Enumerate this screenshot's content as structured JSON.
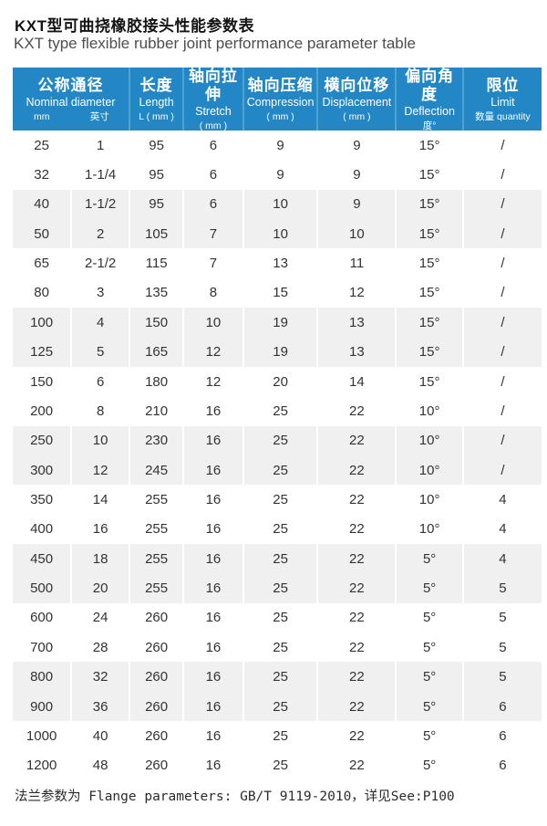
{
  "page": {
    "title_cn": "KXT型可曲挠橡胶接头性能参数表",
    "title_en": "KXT type flexible rubber joint performance parameter table",
    "footnote": "法兰参数为 Flange parameters: GB/T 9119-2010，详见See:P100"
  },
  "colors": {
    "header_bg": "#2287c4",
    "header_divider": "#4fa3cf",
    "row_stripe": "#f0f0f0",
    "body_text": "#333333",
    "header_text": "#ffffff"
  },
  "table": {
    "header": [
      {
        "cn": "公称通径",
        "en": "Nominal diameter",
        "sub": [
          "mm",
          "英寸"
        ]
      },
      {
        "cn": "长度",
        "en": "Length",
        "sub": "L ( mm )"
      },
      {
        "cn": "轴向拉伸",
        "en": "Stretch",
        "sub": "( mm )"
      },
      {
        "cn": "轴向压缩",
        "en": "Compression",
        "sub": "( mm )"
      },
      {
        "cn": "横向位移",
        "en": "Displacement",
        "sub": "( mm )"
      },
      {
        "cn": "偏向角度",
        "en": "Deflection",
        "sub": "度°"
      },
      {
        "cn": "限位",
        "en": "Limit",
        "sub": "数量 quantity"
      }
    ],
    "rows": [
      [
        "25",
        "1",
        "95",
        "6",
        "9",
        "9",
        "15°",
        "/"
      ],
      [
        "32",
        "1-1/4",
        "95",
        "6",
        "9",
        "9",
        "15°",
        "/"
      ],
      [
        "40",
        "1-1/2",
        "95",
        "6",
        "10",
        "9",
        "15°",
        "/"
      ],
      [
        "50",
        "2",
        "105",
        "7",
        "10",
        "10",
        "15°",
        "/"
      ],
      [
        "65",
        "2-1/2",
        "115",
        "7",
        "13",
        "11",
        "15°",
        "/"
      ],
      [
        "80",
        "3",
        "135",
        "8",
        "15",
        "12",
        "15°",
        "/"
      ],
      [
        "100",
        "4",
        "150",
        "10",
        "19",
        "13",
        "15°",
        "/"
      ],
      [
        "125",
        "5",
        "165",
        "12",
        "19",
        "13",
        "15°",
        "/"
      ],
      [
        "150",
        "6",
        "180",
        "12",
        "20",
        "14",
        "15°",
        "/"
      ],
      [
        "200",
        "8",
        "210",
        "16",
        "25",
        "22",
        "10°",
        "/"
      ],
      [
        "250",
        "10",
        "230",
        "16",
        "25",
        "22",
        "10°",
        "/"
      ],
      [
        "300",
        "12",
        "245",
        "16",
        "25",
        "22",
        "10°",
        "/"
      ],
      [
        "350",
        "14",
        "255",
        "16",
        "25",
        "22",
        "10°",
        "4"
      ],
      [
        "400",
        "16",
        "255",
        "16",
        "25",
        "22",
        "10°",
        "4"
      ],
      [
        "450",
        "18",
        "255",
        "16",
        "25",
        "22",
        "5°",
        "4"
      ],
      [
        "500",
        "20",
        "255",
        "16",
        "25",
        "22",
        "5°",
        "5"
      ],
      [
        "600",
        "24",
        "260",
        "16",
        "25",
        "22",
        "5°",
        "5"
      ],
      [
        "700",
        "28",
        "260",
        "16",
        "25",
        "22",
        "5°",
        "5"
      ],
      [
        "800",
        "32",
        "260",
        "16",
        "25",
        "22",
        "5°",
        "5"
      ],
      [
        "900",
        "36",
        "260",
        "16",
        "25",
        "22",
        "5°",
        "6"
      ],
      [
        "1000",
        "40",
        "260",
        "16",
        "25",
        "22",
        "5°",
        "6"
      ],
      [
        "1200",
        "48",
        "260",
        "16",
        "25",
        "22",
        "5°",
        "6"
      ]
    ]
  }
}
